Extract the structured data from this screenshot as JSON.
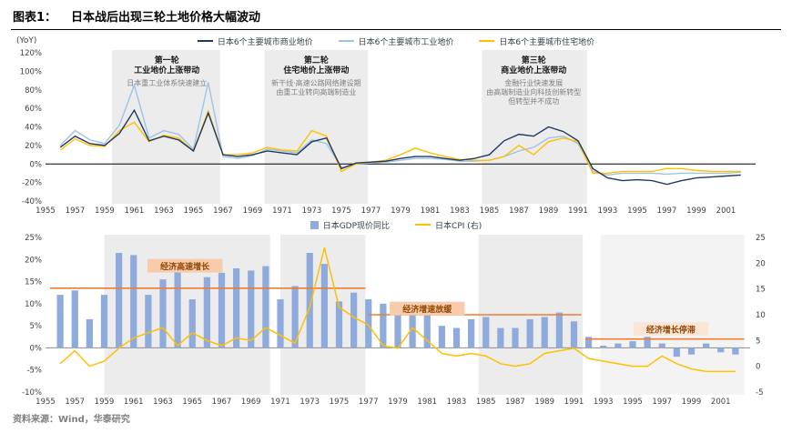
{
  "header": {
    "label": "图表1：",
    "title": "日本战后出现三轮土地价格大幅波动"
  },
  "source": {
    "text": "资料来源：Wind，华泰研究"
  },
  "chart_data": [
    {
      "type": "line",
      "unit_label": "(YoY)",
      "ylim": [
        -40,
        120
      ],
      "yticks": [
        120,
        100,
        80,
        60,
        40,
        20,
        0,
        -20,
        -40
      ],
      "xticks": [
        1955,
        1957,
        1959,
        1961,
        1963,
        1965,
        1967,
        1969,
        1971,
        1973,
        1975,
        1977,
        1979,
        1981,
        1983,
        1985,
        1987,
        1989,
        1991,
        1993,
        1995,
        1997,
        1999,
        2001
      ],
      "x": [
        1956,
        1957,
        1958,
        1959,
        1960,
        1961,
        1962,
        1963,
        1964,
        1965,
        1966,
        1967,
        1968,
        1969,
        1970,
        1971,
        1972,
        1973,
        1974,
        1975,
        1976,
        1977,
        1978,
        1979,
        1980,
        1981,
        1982,
        1983,
        1984,
        1985,
        1986,
        1987,
        1988,
        1989,
        1990,
        1991,
        1992,
        1993,
        1994,
        1995,
        1996,
        1997,
        1998,
        1999,
        2000,
        2001,
        2002
      ],
      "series": [
        {
          "name": "日本6个主要城市商业地价",
          "color": "#1f3864",
          "values": [
            18,
            30,
            22,
            20,
            33,
            58,
            25,
            30,
            26,
            14,
            55,
            10,
            8,
            10,
            14,
            12,
            10,
            24,
            28,
            -5,
            1,
            2,
            3,
            6,
            8,
            8,
            6,
            4,
            6,
            10,
            25,
            32,
            30,
            40,
            35,
            25,
            -5,
            -15,
            -18,
            -17,
            -18,
            -22,
            -18,
            -15,
            -14,
            -13,
            -12
          ]
        },
        {
          "name": "日本6个主要城市工业地价",
          "color": "#9dc3e6",
          "values": [
            20,
            36,
            26,
            22,
            42,
            85,
            28,
            36,
            32,
            16,
            88,
            8,
            6,
            9,
            16,
            14,
            12,
            26,
            22,
            -4,
            0,
            1,
            2,
            4,
            6,
            6,
            5,
            3,
            3,
            4,
            8,
            14,
            18,
            28,
            30,
            22,
            -8,
            -12,
            -10,
            -10,
            -10,
            -11,
            -10,
            -10,
            -10,
            -10,
            -9
          ]
        },
        {
          "name": "日本6个主要城市住宅地价",
          "color": "#ffc000",
          "values": [
            15,
            27,
            20,
            19,
            36,
            45,
            24,
            31,
            28,
            14,
            57,
            10,
            10,
            12,
            18,
            15,
            14,
            36,
            30,
            -8,
            0,
            2,
            4,
            10,
            17,
            12,
            8,
            5,
            4,
            4,
            8,
            20,
            10,
            24,
            28,
            24,
            -10,
            -10,
            -8,
            -8,
            -8,
            -5,
            -5,
            -7,
            -8,
            -8,
            -8
          ]
        }
      ],
      "bands": [
        {
          "x1": 1959.5,
          "x2": 1966.8
        },
        {
          "x1": 1969.8,
          "x2": 1976.8
        },
        {
          "x1": 1984.5,
          "x2": 1991.6
        }
      ],
      "annotations": [
        {
          "x": 1963.2,
          "bold": [
            "第一轮",
            "工业地价上涨带动"
          ],
          "gray": [
            "日本重工业体系快速建立"
          ]
        },
        {
          "x": 1973.3,
          "bold": [
            "第二轮",
            "住宅地价上涨带动"
          ],
          "gray": [
            "新干线·高速公路网络建设期",
            "由重工业转向高端制造业"
          ]
        },
        {
          "x": 1988.0,
          "bold": [
            "第三轮",
            "商业地价上涨带动"
          ],
          "gray": [
            "金融行业快速发展",
            "由高端制造业向科技创新转型",
            "但转型并不成功"
          ]
        }
      ]
    },
    {
      "type": "bar+line",
      "x": [
        1956,
        1957,
        1958,
        1959,
        1960,
        1961,
        1962,
        1963,
        1964,
        1965,
        1966,
        1967,
        1968,
        1969,
        1970,
        1971,
        1972,
        1973,
        1974,
        1975,
        1976,
        1977,
        1978,
        1979,
        1980,
        1981,
        1982,
        1983,
        1984,
        1985,
        1986,
        1987,
        1988,
        1989,
        1990,
        1991,
        1992,
        1993,
        1994,
        1995,
        1996,
        1997,
        1998,
        1999,
        2000,
        2001,
        2002
      ],
      "bar": {
        "name": "日本GDP现价同比",
        "color": "#8faadc",
        "values": [
          12,
          13,
          6.5,
          12,
          21.5,
          21,
          12,
          15.5,
          17.5,
          11,
          16,
          17,
          18,
          17.5,
          18.5,
          11,
          14,
          21.5,
          19,
          10.5,
          12.5,
          11,
          10,
          8.5,
          9,
          7.5,
          5,
          4.5,
          6.5,
          7,
          4.5,
          4.5,
          6.5,
          7,
          8,
          6,
          2.5,
          0.5,
          1,
          1.5,
          2.5,
          1,
          -2,
          -1.5,
          1,
          -1,
          -1.5
        ]
      },
      "line": {
        "name": "日本CPI (右)",
        "color": "#ffc000",
        "values": [
          0.5,
          3,
          0,
          1,
          3.5,
          5.5,
          6.5,
          7.5,
          4,
          6.5,
          5,
          4,
          5.5,
          5,
          7.5,
          6,
          4.5,
          11.5,
          23,
          11.5,
          9.5,
          8,
          4,
          3.5,
          7.5,
          5,
          2.5,
          2,
          2.5,
          2,
          0.5,
          0,
          0.5,
          2.5,
          3,
          3.5,
          1.5,
          1,
          0.5,
          0,
          0,
          2,
          0.5,
          -0.5,
          -1,
          -1,
          -1
        ]
      },
      "left_ylim": [
        -10,
        25
      ],
      "left_yticks": [
        25,
        20,
        15,
        10,
        5,
        0,
        -5,
        -10
      ],
      "right_ylim": [
        -5,
        25
      ],
      "right_yticks": [
        25,
        20,
        15,
        10,
        5,
        0,
        -5
      ],
      "xticks": [
        1955,
        1957,
        1959,
        1961,
        1963,
        1965,
        1967,
        1969,
        1971,
        1973,
        1975,
        1977,
        1979,
        1981,
        1983,
        1985,
        1987,
        1989,
        1991,
        1993,
        1995,
        1997,
        1999,
        2001
      ],
      "bands": [
        {
          "x1": 1959.0,
          "x2": 1970.3
        },
        {
          "x1": 1971.0,
          "x2": 1976.8
        },
        {
          "x1": 1984.5,
          "x2": 1991.6
        },
        {
          "x1": 1992.8,
          "x2": 2002.6,
          "light": true
        }
      ],
      "avg_lines": [
        {
          "x1": 1955.3,
          "x2": 1976.8,
          "y": 13.5
        },
        {
          "x1": 1977.0,
          "x2": 1991.5,
          "y": 7.5
        },
        {
          "x1": 1991.8,
          "x2": 2002.6,
          "y": 2.0
        }
      ],
      "labels": [
        {
          "text": "经济高速增长",
          "x": 1964.5,
          "y": 18.5,
          "fill": "#f8cbad"
        },
        {
          "text": "经济增速放缓",
          "x": 1981.0,
          "y": 8.8,
          "fill": "#f8cbad"
        },
        {
          "text": "经济增长停滞",
          "x": 1997.6,
          "y": 4.2,
          "fill": "#fbe5d6"
        }
      ]
    }
  ]
}
